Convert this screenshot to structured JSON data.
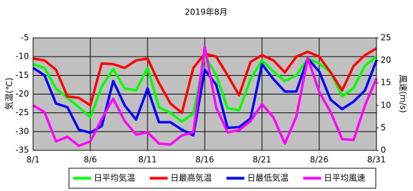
{
  "chart_data": {
    "type": "line",
    "title": "2019年8月",
    "y_label": "気温(℃)",
    "y2_label": "風速(m/s)",
    "categories": [
      "8/1",
      null,
      null,
      null,
      null,
      "8/6",
      null,
      null,
      null,
      null,
      "8/11",
      null,
      null,
      null,
      null,
      "8/16",
      null,
      null,
      null,
      null,
      "8/21",
      null,
      null,
      null,
      null,
      "8/26",
      null,
      null,
      null,
      null,
      "8/31"
    ],
    "ylim": [
      -35,
      -5
    ],
    "yticks": [
      -35,
      -30,
      -25,
      -20,
      -15,
      -10,
      -5
    ],
    "y2lim": [
      0,
      25
    ],
    "y2ticks": [
      0,
      5,
      10,
      15,
      20,
      25
    ],
    "grid": true,
    "background": "#c0c0c0",
    "legend": "bottom",
    "series": [
      {
        "name": "日平均気温",
        "color": "#00ff00",
        "values": [
          -12,
          -13,
          -18.5,
          -21,
          -23.5,
          -26.2,
          -18,
          -13.3,
          -18.5,
          -19,
          -13,
          -23.5,
          -25,
          -27.3,
          -25.2,
          -9.6,
          -15,
          -23.8,
          -24.3,
          -16,
          -11,
          -14,
          -16.5,
          -15,
          -10.5,
          -11.8,
          -14.2,
          -20.6,
          -18.4,
          -12.4,
          -10
        ]
      },
      {
        "name": "日最高気温",
        "color": "#ff0000",
        "values": [
          -10.5,
          -11,
          -13.5,
          -20.6,
          -21,
          -23,
          -11.8,
          -12,
          -13,
          -11,
          -10.5,
          -17,
          -22.5,
          -25,
          -13,
          -9.2,
          -10,
          -15,
          -20.3,
          -11.4,
          -9.6,
          -11,
          -14.2,
          -10,
          -8.7,
          -10,
          -14.2,
          -19,
          -12.5,
          -9.6,
          -7.8
        ]
      },
      {
        "name": "日最低気温",
        "color": "#0000ff",
        "values": [
          -13,
          -15,
          -22.5,
          -23.5,
          -29.5,
          -30.3,
          -28.5,
          -16.5,
          -23,
          -26.8,
          -18.5,
          -27.5,
          -27.5,
          -29.5,
          -31,
          -13.5,
          -17.5,
          -29,
          -28.8,
          -26.5,
          -12,
          -16,
          -19.3,
          -19.3,
          -10.5,
          -14,
          -21.5,
          -24,
          -22,
          -19,
          -11
        ]
      },
      {
        "name": "日平均風速",
        "color": "#ff00ff",
        "axis": "y2",
        "values": [
          10,
          8.5,
          2,
          3,
          1,
          2,
          7,
          11.5,
          6.5,
          3.5,
          4,
          1.5,
          1.3,
          3.3,
          4,
          23,
          9.5,
          4,
          4.5,
          6.5,
          10.3,
          7.3,
          1.5,
          7.5,
          20.5,
          13,
          8.5,
          2.5,
          2.3,
          10,
          16
        ]
      }
    ]
  }
}
